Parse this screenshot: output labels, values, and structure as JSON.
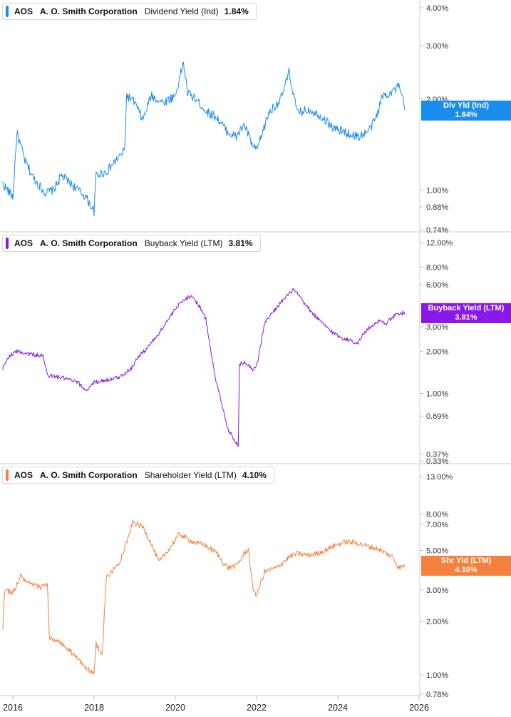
{
  "ticker": "AOS",
  "company": "A. O. Smith Corporation",
  "x_axis": {
    "labels": [
      "2016",
      "2018",
      "2020",
      "2022",
      "2024",
      "2026"
    ],
    "years": [
      2016,
      2018,
      2020,
      2022,
      2024,
      2026
    ]
  },
  "panels": [
    {
      "metric": "Dividend Yield (Ind)",
      "value": "1.84%",
      "badge_line1": "Div Yld (Ind)",
      "badge_line2": "1.84%",
      "color": "#1a8cec",
      "yticks": [
        "4.00%",
        "3.00%",
        "2.00%",
        "1.00%",
        "0.88%",
        "0.74%"
      ],
      "ytick_values": [
        4.0,
        3.0,
        2.0,
        1.0,
        0.88,
        0.74
      ]
    },
    {
      "metric": "Buyback Yield (LTM)",
      "value": "3.81%",
      "badge_line1": "Buyback Yield (LTM)",
      "badge_line2": "3.81%",
      "color": "#8a18e8",
      "yticks": [
        "12.00%",
        "8.00%",
        "6.00%",
        "3.00%",
        "2.00%",
        "1.00%",
        "0.69%",
        "0.37%",
        "0.33%"
      ],
      "ytick_values": [
        12.0,
        8.0,
        6.0,
        3.0,
        2.0,
        1.0,
        0.69,
        0.37,
        0.33
      ]
    },
    {
      "metric": "Shareholder Yield (LTM)",
      "value": "4.10%",
      "badge_line1": "Shr Yld (LTM)",
      "badge_line2": "4.10%",
      "color": "#f5813f",
      "yticks": [
        "13.00%",
        "8.00%",
        "7.00%",
        "5.00%",
        "3.00%",
        "2.00%",
        "1.00%",
        "0.78%"
      ],
      "ytick_values": [
        13.0,
        8.0,
        7.0,
        5.0,
        3.0,
        2.0,
        1.0,
        0.78
      ]
    }
  ],
  "chart_data": [
    {
      "type": "line",
      "title": "AOS A. O. Smith Corporation Dividend Yield (Ind) 1.84%",
      "yscale": "log",
      "x_range": [
        2016,
        2026
      ],
      "series": [
        {
          "name": "Dividend Yield (Ind)",
          "x": [
            2015.75,
            2016.0,
            2016.1,
            2016.3,
            2016.5,
            2016.8,
            2017.0,
            2017.2,
            2017.5,
            2017.8,
            2018.0,
            2018.05,
            2018.3,
            2018.6,
            2018.75,
            2018.8,
            2019.0,
            2019.2,
            2019.4,
            2019.7,
            2020.0,
            2020.2,
            2020.3,
            2020.5,
            2020.8,
            2021.0,
            2021.3,
            2021.5,
            2021.7,
            2021.9,
            2022.0,
            2022.3,
            2022.6,
            2022.8,
            2022.9,
            2023.0,
            2023.3,
            2023.6,
            2023.9,
            2024.2,
            2024.5,
            2024.7,
            2024.8,
            2024.95,
            2025.1,
            2025.3,
            2025.5,
            2025.6,
            2025.65
          ],
          "values": [
            1.05,
            0.95,
            1.55,
            1.25,
            1.1,
            0.98,
            1.0,
            1.12,
            1.03,
            0.95,
            0.85,
            1.12,
            1.15,
            1.28,
            1.35,
            2.05,
            1.95,
            1.7,
            2.05,
            1.95,
            2.05,
            2.65,
            2.1,
            2.0,
            1.8,
            1.75,
            1.55,
            1.5,
            1.65,
            1.4,
            1.35,
            1.8,
            2.0,
            2.45,
            2.1,
            1.8,
            1.85,
            1.75,
            1.6,
            1.55,
            1.5,
            1.55,
            1.6,
            1.75,
            2.05,
            2.1,
            2.2,
            2.0,
            1.84
          ]
        }
      ]
    },
    {
      "type": "line",
      "title": "AOS A. O. Smith Corporation Buyback Yield (LTM) 3.81%",
      "yscale": "log",
      "x_range": [
        2016,
        2026
      ],
      "series": [
        {
          "name": "Buyback Yield (LTM)",
          "x": [
            2015.75,
            2015.9,
            2016.1,
            2016.5,
            2016.75,
            2016.85,
            2017.2,
            2017.6,
            2017.8,
            2018.0,
            2018.3,
            2018.6,
            2018.9,
            2019.1,
            2019.3,
            2019.6,
            2019.8,
            2020.0,
            2020.2,
            2020.4,
            2020.6,
            2020.75,
            2020.8,
            2021.0,
            2021.05,
            2021.3,
            2021.4,
            2021.55,
            2021.58,
            2021.7,
            2021.9,
            2022.0,
            2022.2,
            2022.3,
            2022.6,
            2022.9,
            2023.0,
            2023.2,
            2023.4,
            2023.6,
            2023.9,
            2024.1,
            2024.3,
            2024.5,
            2024.6,
            2024.8,
            2025.0,
            2025.2,
            2025.4,
            2025.65
          ],
          "values": [
            1.5,
            1.85,
            2.0,
            1.9,
            1.85,
            1.35,
            1.3,
            1.2,
            1.05,
            1.2,
            1.25,
            1.3,
            1.5,
            1.85,
            2.1,
            2.7,
            3.3,
            4.0,
            4.7,
            5.0,
            4.2,
            3.4,
            2.8,
            1.2,
            1.1,
            0.55,
            0.5,
            0.42,
            1.6,
            1.7,
            1.5,
            1.55,
            3.2,
            3.5,
            4.5,
            5.5,
            5.2,
            4.3,
            3.7,
            3.2,
            2.7,
            2.5,
            2.4,
            2.3,
            2.6,
            3.0,
            3.3,
            3.2,
            3.6,
            3.81
          ]
        }
      ]
    },
    {
      "type": "line",
      "title": "AOS A. O. Smith Corporation Shareholder Yield (LTM) 4.10%",
      "yscale": "log",
      "x_range": [
        2016,
        2026
      ],
      "series": [
        {
          "name": "Shareholder Yield (LTM)",
          "x": [
            2015.75,
            2015.8,
            2016.0,
            2016.2,
            2016.35,
            2016.5,
            2016.7,
            2016.85,
            2016.9,
            2017.2,
            2017.5,
            2017.8,
            2018.0,
            2018.05,
            2018.2,
            2018.3,
            2018.6,
            2018.8,
            2018.95,
            2019.2,
            2019.4,
            2019.6,
            2019.9,
            2020.1,
            2020.3,
            2020.5,
            2020.7,
            2021.0,
            2021.2,
            2021.3,
            2021.5,
            2021.7,
            2021.8,
            2021.9,
            2022.0,
            2022.2,
            2022.5,
            2022.8,
            2023.0,
            2023.3,
            2023.6,
            2023.9,
            2024.2,
            2024.5,
            2024.7,
            2025.0,
            2025.2,
            2025.35,
            2025.5,
            2025.65
          ],
          "values": [
            1.8,
            3.0,
            2.9,
            3.6,
            3.3,
            3.2,
            3.1,
            3.3,
            1.6,
            1.5,
            1.3,
            1.1,
            1.0,
            1.5,
            1.3,
            3.5,
            4.2,
            5.5,
            7.2,
            6.8,
            5.5,
            4.3,
            5.3,
            6.2,
            5.8,
            5.5,
            5.4,
            4.9,
            4.2,
            4.0,
            4.1,
            4.8,
            5.1,
            3.1,
            2.8,
            3.8,
            4.0,
            4.6,
            4.8,
            4.7,
            4.9,
            5.3,
            5.6,
            5.5,
            5.3,
            5.1,
            4.8,
            4.6,
            4.0,
            4.1
          ]
        }
      ]
    }
  ]
}
